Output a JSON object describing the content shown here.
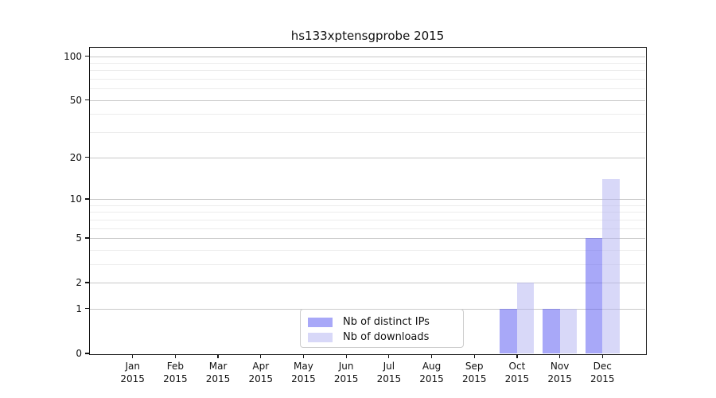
{
  "chart_data": {
    "type": "bar",
    "title": "hs133xptensgprobe 2015",
    "categories": [
      {
        "month": "Jan",
        "year": "2015"
      },
      {
        "month": "Feb",
        "year": "2015"
      },
      {
        "month": "Mar",
        "year": "2015"
      },
      {
        "month": "Apr",
        "year": "2015"
      },
      {
        "month": "May",
        "year": "2015"
      },
      {
        "month": "Jun",
        "year": "2015"
      },
      {
        "month": "Jul",
        "year": "2015"
      },
      {
        "month": "Aug",
        "year": "2015"
      },
      {
        "month": "Sep",
        "year": "2015"
      },
      {
        "month": "Oct",
        "year": "2015"
      },
      {
        "month": "Nov",
        "year": "2015"
      },
      {
        "month": "Dec",
        "year": "2015"
      }
    ],
    "series": [
      {
        "name": "Nb of distinct IPs",
        "color": "#a8a8f8",
        "values": [
          0,
          0,
          0,
          0,
          0,
          0,
          0,
          0,
          0,
          1,
          1,
          5
        ]
      },
      {
        "name": "Nb of downloads",
        "color": "#d8d8f8",
        "values": [
          0,
          0,
          0,
          0,
          0,
          0,
          0,
          0,
          0,
          2,
          1,
          14
        ]
      }
    ],
    "y_axis": {
      "scale": "symlog-log1p",
      "min": 0,
      "max": 114,
      "ticks": [
        100,
        50,
        20,
        10,
        5,
        2,
        1,
        0
      ],
      "minor_ticks": [
        3,
        4,
        6,
        7,
        8,
        9,
        30,
        40,
        60,
        70,
        80,
        90
      ]
    },
    "x_axis": {
      "range": [
        -1,
        12
      ]
    },
    "grid": {
      "major_color": "#c8c8c8",
      "minor_color": "#ececec"
    },
    "legend": {
      "position": "bottom-center"
    },
    "frame_color": "#151515",
    "background": "#ffffff"
  }
}
